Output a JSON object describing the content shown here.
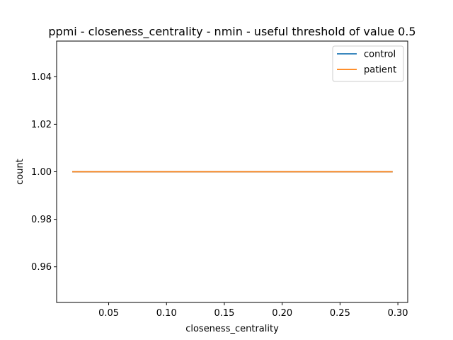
{
  "chart_data": {
    "type": "line",
    "title": "ppmi - closeness_centrality - nmin - useful threshold of value 0.5",
    "xlabel": "closeness_centrality",
    "ylabel": "count",
    "xlim": [
      0.005,
      0.3085
    ],
    "ylim": [
      0.945,
      1.055
    ],
    "xticks": [
      0.05,
      0.1,
      0.15,
      0.2,
      0.25,
      0.3
    ],
    "xtick_labels": [
      "0.05",
      "0.10",
      "0.15",
      "0.20",
      "0.25",
      "0.30"
    ],
    "yticks": [
      0.96,
      0.98,
      1.0,
      1.02,
      1.04
    ],
    "ytick_labels": [
      "0.96",
      "0.98",
      "1.00",
      "1.02",
      "1.04"
    ],
    "grid": false,
    "legend_position": "top-right",
    "series": [
      {
        "name": "control",
        "color": "#1f77b4",
        "x": [
          0.0185,
          0.2955
        ],
        "y": [
          1.0,
          1.0
        ]
      },
      {
        "name": "patient",
        "color": "#ff7f0e",
        "x": [
          0.0185,
          0.2955
        ],
        "y": [
          1.0,
          1.0
        ]
      }
    ]
  }
}
